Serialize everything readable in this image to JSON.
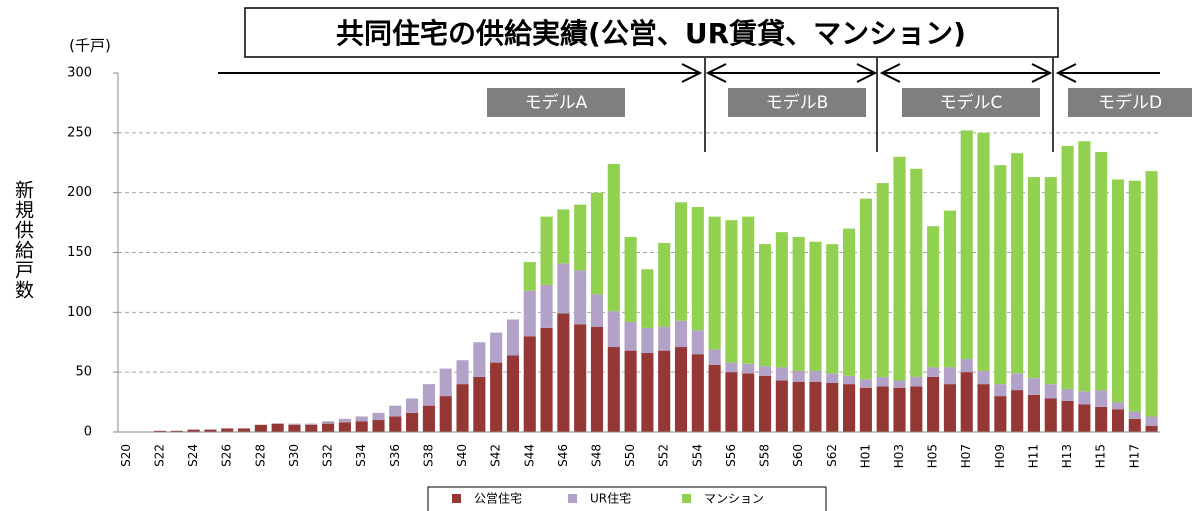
{
  "chart_data": {
    "type": "bar",
    "stacked": true,
    "title": "共同住宅の供給実績(公営、UR賃貸、マンション)",
    "unit_label": "(千戸)",
    "y_label": "新規供給戸数",
    "annotations": [
      "モデルA",
      "モデルB",
      "モデルC",
      "モデルD"
    ],
    "categories": [
      "S20",
      null,
      "S22",
      null,
      "S24",
      null,
      "S26",
      null,
      "S28",
      null,
      "S30",
      null,
      "S32",
      null,
      "S34",
      null,
      "S36",
      null,
      "S38",
      null,
      "S40",
      null,
      "S42",
      null,
      "S44",
      null,
      "S46",
      null,
      "S48",
      null,
      "S50",
      null,
      "S52",
      null,
      "S54",
      null,
      "S56",
      null,
      "S58",
      null,
      "S60",
      null,
      "S62",
      null,
      "H01",
      null,
      "H03",
      null,
      "H05",
      null,
      "H07",
      null,
      "H09",
      null,
      "H11",
      null,
      "H13",
      null,
      "H15",
      null,
      "H17",
      null
    ],
    "series": [
      {
        "name": "公営住宅",
        "color": "#953735",
        "values": [
          0,
          0,
          1,
          1,
          2,
          2,
          3,
          3,
          6,
          7,
          6,
          6,
          7,
          8,
          9,
          10,
          13,
          16,
          22,
          30,
          40,
          46,
          58,
          64,
          80,
          87,
          99,
          90,
          88,
          71,
          68,
          66,
          68,
          71,
          65,
          56,
          50,
          49,
          47,
          43,
          42,
          42,
          41,
          40,
          37,
          38,
          37,
          38,
          46,
          40,
          50,
          40,
          30,
          35,
          31,
          28,
          26,
          23,
          21,
          19,
          11,
          5
        ]
      },
      {
        "name": "UR住宅",
        "color": "#b3a2c7",
        "values": [
          0,
          0,
          0,
          0,
          0,
          0,
          0,
          0,
          0,
          0,
          1,
          1,
          2,
          3,
          4,
          6,
          9,
          12,
          18,
          23,
          20,
          29,
          25,
          30,
          38,
          36,
          42,
          45,
          27,
          30,
          24,
          21,
          20,
          22,
          20,
          13,
          8,
          8,
          8,
          11,
          9,
          9,
          8,
          7,
          7,
          8,
          6,
          8,
          8,
          14,
          11,
          11,
          10,
          14,
          14,
          12,
          10,
          11,
          14,
          6,
          6,
          8
        ]
      },
      {
        "name": "マンション",
        "color": "#92d050",
        "values": [
          0,
          0,
          0,
          0,
          0,
          0,
          0,
          0,
          0,
          0,
          0,
          0,
          0,
          0,
          0,
          0,
          0,
          0,
          0,
          0,
          0,
          0,
          0,
          0,
          24,
          57,
          45,
          55,
          85,
          123,
          71,
          49,
          70,
          99,
          103,
          111,
          119,
          123,
          102,
          113,
          112,
          108,
          108,
          123,
          151,
          162,
          187,
          174,
          118,
          131,
          191,
          199,
          183,
          184,
          168,
          173,
          203,
          209,
          199,
          186,
          193,
          205
        ]
      }
    ],
    "ylim": [
      0,
      300
    ],
    "yticks": [
      0,
      50,
      100,
      150,
      200,
      250,
      300
    ],
    "grid": true,
    "legend": "bottom"
  }
}
